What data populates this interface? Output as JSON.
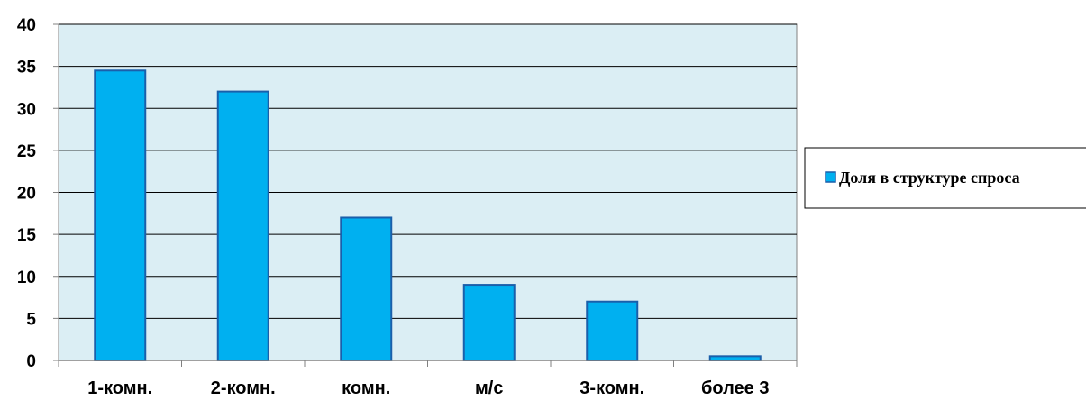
{
  "chart_data": {
    "type": "bar",
    "title": "",
    "xlabel": "",
    "ylabel": "",
    "categories": [
      "1-комн.",
      "2-комн.",
      "комн.",
      "м/с",
      "3-комн.",
      "более 3"
    ],
    "series": [
      {
        "name": "Доля в структуре спроса",
        "values": [
          34.5,
          32,
          17,
          9,
          7,
          0.5
        ]
      }
    ],
    "ylim": [
      0,
      40
    ],
    "yticks": [
      0,
      5,
      10,
      15,
      20,
      25,
      30,
      35,
      40
    ],
    "grid": true,
    "legend": "right",
    "colors": {
      "bar_fill": "#00b0f0",
      "bar_stroke": "#1a5faa",
      "plot_background": "#dbeef4",
      "gridline": "#000000"
    }
  }
}
